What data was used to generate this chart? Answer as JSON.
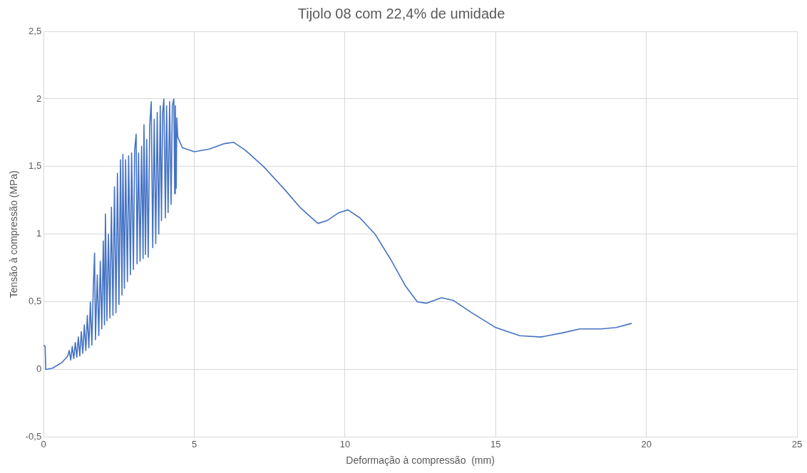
{
  "chart_data": {
    "type": "line",
    "title": "Tijolo 08 com 22,4% de umidade",
    "xlabel": "Deformação à compressão  (mm)",
    "ylabel": "Tensão à compressão (MPa)",
    "x": [
      0,
      0.05,
      0.07,
      0.3,
      0.6,
      0.8,
      0.85,
      0.9,
      0.95,
      1.0,
      1.05,
      1.1,
      1.15,
      1.2,
      1.25,
      1.3,
      1.35,
      1.4,
      1.45,
      1.5,
      1.55,
      1.6,
      1.65,
      1.69,
      1.72,
      1.78,
      1.83,
      1.88,
      1.93,
      1.98,
      2.02,
      2.05,
      2.1,
      2.15,
      2.2,
      2.25,
      2.3,
      2.35,
      2.4,
      2.45,
      2.5,
      2.55,
      2.6,
      2.63,
      2.68,
      2.72,
      2.78,
      2.82,
      2.88,
      2.92,
      2.98,
      3.02,
      3.07,
      3.1,
      3.15,
      3.2,
      3.25,
      3.3,
      3.33,
      3.38,
      3.42,
      3.47,
      3.52,
      3.57,
      3.62,
      3.67,
      3.72,
      3.77,
      3.82,
      3.87,
      3.91,
      3.95,
      3.99,
      4.04,
      4.08,
      4.13,
      4.18,
      4.23,
      4.27,
      4.32,
      4.35,
      4.37,
      4.4,
      4.42,
      4.45,
      4.6,
      5.0,
      5.5,
      6.0,
      6.3,
      6.7,
      7.3,
      8.0,
      8.5,
      9.1,
      9.4,
      9.8,
      10.1,
      10.5,
      11.0,
      11.5,
      12.0,
      12.4,
      12.7,
      13.2,
      13.6,
      14.2,
      15.0,
      15.8,
      16.5,
      17.2,
      17.8,
      18.5,
      19.0,
      19.5
    ],
    "series": [
      {
        "color": "#4472c4",
        "values": [
          0.18,
          0.17,
          0,
          0.01,
          0.05,
          0.1,
          0.14,
          0.07,
          0.17,
          0.08,
          0.2,
          0.09,
          0.24,
          0.1,
          0.28,
          0.12,
          0.33,
          0.14,
          0.4,
          0.16,
          0.5,
          0.18,
          0.62,
          0.86,
          0.22,
          0.7,
          0.25,
          0.8,
          0.3,
          0.95,
          0.33,
          1.15,
          0.36,
          1.0,
          0.38,
          1.2,
          0.4,
          1.35,
          0.42,
          1.45,
          0.48,
          1.55,
          0.55,
          1.59,
          0.6,
          1.55,
          0.65,
          1.58,
          0.7,
          1.6,
          0.74,
          1.62,
          1.74,
          0.78,
          1.6,
          0.8,
          1.65,
          0.82,
          1.81,
          0.85,
          1.7,
          0.83,
          1.8,
          1.98,
          0.9,
          1.85,
          0.93,
          1.9,
          1.0,
          1.95,
          1.1,
          1.9,
          2.0,
          1.12,
          1.95,
          1.16,
          1.98,
          1.22,
          1.95,
          2.0,
          1.3,
          1.95,
          1.34,
          1.86,
          1.72,
          1.64,
          1.61,
          1.63,
          1.67,
          1.68,
          1.62,
          1.5,
          1.33,
          1.2,
          1.08,
          1.1,
          1.16,
          1.18,
          1.12,
          1.0,
          0.82,
          0.62,
          0.5,
          0.49,
          0.53,
          0.51,
          0.42,
          0.31,
          0.25,
          0.24,
          0.27,
          0.3,
          0.3,
          0.31,
          0.34
        ]
      }
    ],
    "xlim": [
      0,
      25
    ],
    "xticks": [
      0,
      5,
      10,
      15,
      20,
      25
    ],
    "ylim": [
      -0.5,
      2.5
    ],
    "yticks": [
      {
        "value": -0.5,
        "label": "-0,5"
      },
      0,
      {
        "value": 0.5,
        "label": "0,5"
      },
      1,
      {
        "value": 1.5,
        "label": "1,5"
      },
      2,
      {
        "value": 2.5,
        "label": "2,5"
      }
    ],
    "grid": true,
    "legend": false,
    "marker": "none",
    "line_style": "solid"
  }
}
